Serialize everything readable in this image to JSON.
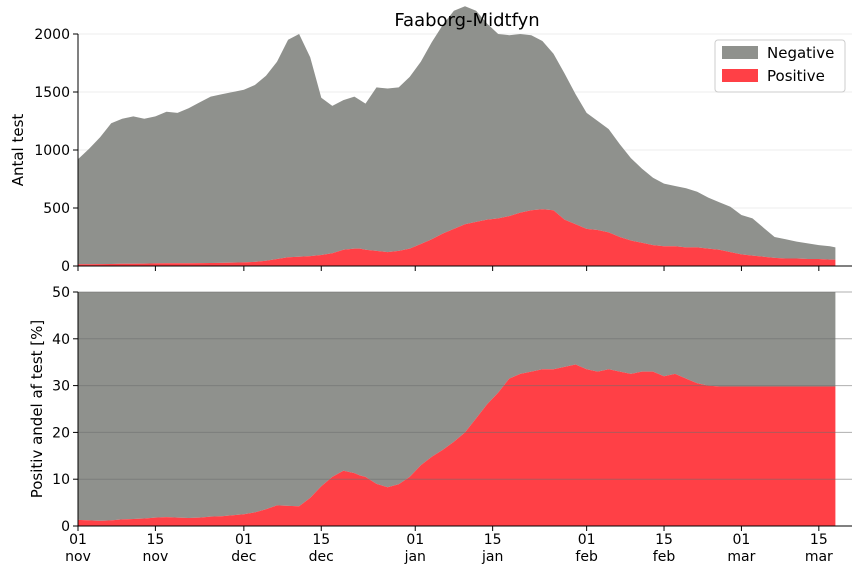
{
  "chart_data": [
    {
      "type": "area",
      "title": "Faaborg-Midtfyn",
      "ylabel": "Antal test",
      "xlabel": "",
      "ylim": [
        0,
        2000
      ],
      "yticks": [
        0,
        500,
        1000,
        1500,
        2000
      ],
      "xticks": [
        {
          "day": "01",
          "month": "nov",
          "x": 0
        },
        {
          "day": "15",
          "month": "nov",
          "x": 14
        },
        {
          "day": "01",
          "month": "dec",
          "x": 30
        },
        {
          "day": "15",
          "month": "dec",
          "x": 44
        },
        {
          "day": "01",
          "month": "jan",
          "x": 61
        },
        {
          "day": "15",
          "month": "jan",
          "x": 75
        },
        {
          "day": "01",
          "month": "feb",
          "x": 92
        },
        {
          "day": "15",
          "month": "feb",
          "x": 106
        },
        {
          "day": "01",
          "month": "mar",
          "x": 120
        },
        {
          "day": "15",
          "month": "mar",
          "x": 134
        }
      ],
      "x_range": [
        0,
        140
      ],
      "legend_position": "top-right",
      "grid": "horizontal",
      "series": [
        {
          "name": "Negative",
          "color": "#8f918d",
          "x": [
            0,
            2,
            4,
            6,
            8,
            10,
            12,
            14,
            16,
            18,
            20,
            22,
            24,
            26,
            28,
            30,
            32,
            34,
            36,
            38,
            40,
            42,
            44,
            46,
            48,
            50,
            51,
            52,
            54,
            56,
            58,
            60,
            62,
            64,
            66,
            68,
            70,
            72,
            74,
            76,
            78,
            80,
            82,
            84,
            86,
            88,
            90,
            92,
            94,
            96,
            98,
            100,
            102,
            104,
            106,
            108,
            110,
            112,
            114,
            116,
            118,
            120,
            122,
            124,
            126,
            128,
            130,
            132,
            134,
            136,
            137
          ],
          "values": [
            920,
            1010,
            1100,
            1210,
            1250,
            1270,
            1250,
            1270,
            1310,
            1300,
            1340,
            1390,
            1440,
            1460,
            1470,
            1490,
            1530,
            1600,
            1700,
            1870,
            1920,
            1700,
            1350,
            1250,
            1280,
            1320,
            1300,
            1280,
            1420,
            1400,
            1390,
            1440,
            1540,
            1650,
            1780,
            1860,
            1910,
            1820,
            1700,
            1580,
            1520,
            1480,
            1510,
            1490,
            1440,
            1300,
            1130,
            1000,
            940,
            900,
            800,
            710,
            640,
            580,
            540,
            520,
            500,
            480,
            440,
            390,
            330,
            280,
            260,
            210,
            130,
            115,
            100,
            95,
            85,
            80,
            75
          ],
          "total": [
            920,
            1010,
            1110,
            1230,
            1270,
            1290,
            1270,
            1290,
            1330,
            1320,
            1360,
            1410,
            1460,
            1480,
            1500,
            1520,
            1560,
            1640,
            1760,
            1950,
            2000,
            1800,
            1450,
            1380,
            1430,
            1460,
            1430,
            1400,
            1540,
            1530,
            1540,
            1630,
            1760,
            1930,
            2080,
            2200,
            2240,
            2200,
            2090,
            2000,
            1990,
            2000,
            1990,
            1940,
            1830,
            1660,
            1480,
            1320,
            1250,
            1180,
            1050,
            930,
            840,
            760,
            710,
            690,
            670,
            640,
            590,
            550,
            510,
            440,
            410,
            330,
            250,
            230,
            210,
            195,
            180,
            170,
            160
          ]
        },
        {
          "name": "Positive",
          "color": "#ff4046",
          "x": [
            0,
            2,
            4,
            6,
            8,
            10,
            12,
            14,
            16,
            18,
            20,
            22,
            24,
            26,
            28,
            30,
            32,
            34,
            36,
            38,
            40,
            42,
            44,
            46,
            48,
            50,
            51,
            52,
            54,
            56,
            58,
            60,
            62,
            64,
            66,
            68,
            70,
            72,
            74,
            76,
            78,
            80,
            82,
            84,
            86,
            88,
            90,
            92,
            94,
            96,
            98,
            100,
            102,
            104,
            106,
            108,
            110,
            112,
            114,
            116,
            118,
            120,
            122,
            124,
            126,
            128,
            130,
            132,
            134,
            136,
            137
          ],
          "values": [
            15,
            15,
            16,
            17,
            19,
            20,
            21,
            22,
            24,
            24,
            24,
            25,
            26,
            27,
            29,
            31,
            35,
            45,
            60,
            75,
            80,
            85,
            95,
            110,
            140,
            150,
            150,
            140,
            130,
            120,
            130,
            150,
            190,
            230,
            280,
            320,
            360,
            380,
            400,
            410,
            430,
            460,
            480,
            490,
            480,
            400,
            360,
            320,
            310,
            290,
            250,
            220,
            200,
            180,
            170,
            170,
            160,
            160,
            150,
            140,
            120,
            100,
            90,
            80,
            70,
            65,
            65,
            60,
            60,
            55,
            55
          ],
          "pct": [
            1.3,
            1.2,
            1.1,
            1.2,
            1.4,
            1.5,
            1.6,
            1.8,
            1.9,
            1.8,
            1.7,
            1.8,
            2.0,
            2.1,
            2.3,
            2.5,
            2.9,
            3.6,
            4.4,
            4.3,
            4.2,
            6.0,
            8.5,
            10.5,
            11.8,
            11.3,
            10.8,
            10.5,
            9.0,
            8.3,
            8.9,
            10.5,
            13.0,
            14.8,
            16.3,
            18.0,
            20.0,
            23.0,
            26.0,
            28.5,
            31.5,
            32.5,
            33.0,
            33.5,
            33.5,
            34.0,
            34.5,
            33.5,
            33.0,
            33.5,
            33.0,
            32.5,
            33.0,
            33.0,
            32.0,
            32.5,
            31.5,
            30.5,
            30.0,
            29.8,
            29.8,
            29.8,
            29.8,
            29.8,
            29.8,
            29.8,
            29.8,
            29.8,
            29.8,
            29.8,
            29.8
          ]
        }
      ]
    },
    {
      "type": "area",
      "title": "",
      "ylabel": "Positiv andel af test [%]",
      "xlabel": "",
      "ylim": [
        0,
        50
      ],
      "yticks": [
        0,
        10,
        20,
        30,
        40,
        50
      ],
      "x_range": [
        0,
        140
      ],
      "grid": "horizontal",
      "series": [
        {
          "name": "Negative",
          "color": "#8f918d",
          "fill_to": 50
        },
        {
          "name": "Positive",
          "color": "#ff4046"
        }
      ]
    }
  ]
}
